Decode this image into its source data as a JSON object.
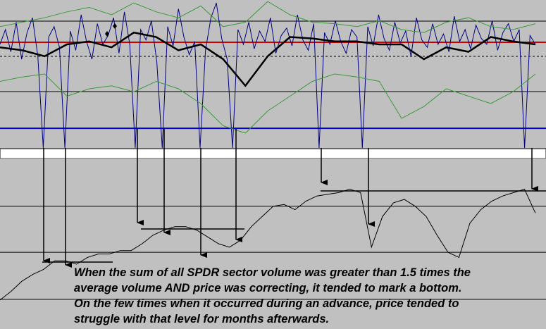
{
  "chart_data": [
    {
      "type": "line",
      "ylim": [
        0,
        100
      ],
      "hlines": [
        {
          "value": 85.7,
          "color": "#000000"
        },
        {
          "value": 71.4,
          "color": "#cc0000"
        },
        {
          "value": 61.9,
          "color": "#000000",
          "dash": true
        },
        {
          "value": 38.1,
          "color": "#000000"
        },
        {
          "value": 13.3,
          "color": "#0000cc"
        }
      ],
      "series": [
        {
          "color": "#000080",
          "values": [
            70,
            80,
            65,
            85,
            60,
            78,
            88,
            62,
            0,
            75,
            82,
            68,
            0,
            79,
            66,
            90,
            72,
            60,
            84,
            70,
            76,
            88,
            64,
            92,
            70,
            0,
            80,
            73,
            86,
            58,
            0,
            82,
            69,
            94,
            75,
            63,
            72,
            0,
            66,
            88,
            98,
            74,
            60,
            0,
            80,
            70,
            85,
            67,
            79,
            72,
            88,
            64,
            76,
            81,
            69,
            90,
            73,
            66,
            84,
            0,
            78,
            70,
            86,
            72,
            64,
            80,
            75,
            0,
            82,
            69,
            90,
            74,
            66,
            85,
            71,
            79,
            62,
            88,
            73,
            68,
            84,
            70,
            77,
            65,
            89,
            72,
            80,
            67,
            83,
            74,
            70,
            86,
            66,
            78,
            84,
            72,
            80,
            0,
            76,
            70
          ]
        },
        {
          "color": "#3a9a3a",
          "values": [
            82,
            85,
            88,
            92,
            95,
            90,
            98,
            92,
            88,
            96,
            82,
            85,
            99,
            90,
            85,
            84,
            82,
            86,
            80,
            78,
            85,
            88,
            82,
            80,
            84
          ]
        },
        {
          "color": "#3a9a3a",
          "values": [
            45,
            48,
            50,
            35,
            40,
            42,
            38,
            45,
            40,
            30,
            15,
            10,
            25,
            35,
            45,
            50,
            48,
            45,
            20,
            28,
            40,
            35,
            30,
            38,
            50
          ]
        },
        {
          "color": "#000000",
          "width": 2.5,
          "values": [
            68,
            66,
            62,
            70,
            72,
            68,
            78,
            75,
            66,
            70,
            60,
            42,
            62,
            75,
            74,
            72,
            72,
            70,
            70,
            60,
            68,
            65,
            75,
            72,
            70
          ]
        }
      ]
    },
    {
      "type": "line",
      "ylim": [
        0,
        100
      ],
      "hlines": [
        {
          "value": 72,
          "color": "#000000"
        },
        {
          "value": 45,
          "color": "#000000"
        },
        {
          "value": 17.4,
          "color": "#000000"
        }
      ],
      "series": [
        {
          "color": "#000000",
          "values": [
            17,
            22,
            28,
            32,
            35,
            40,
            40,
            38,
            42,
            44,
            44,
            46,
            46,
            50,
            55,
            58,
            60,
            60,
            58,
            54,
            50,
            48,
            52,
            60,
            66,
            72,
            73,
            70,
            75,
            78,
            79,
            80,
            82,
            80,
            48,
            66,
            74,
            76,
            72,
            66,
            55,
            45,
            42,
            62,
            70,
            75,
            78,
            80,
            82,
            68
          ]
        }
      ],
      "annotation": [
        "When the sum of all SPDR sector volume was greater than 1.5 times the",
        "average volume AND price was correcting, it tended to mark a bottom.",
        "On the few times when it occurred during an advance, price tended to",
        "struggle with that level for months afterwards."
      ]
    }
  ]
}
